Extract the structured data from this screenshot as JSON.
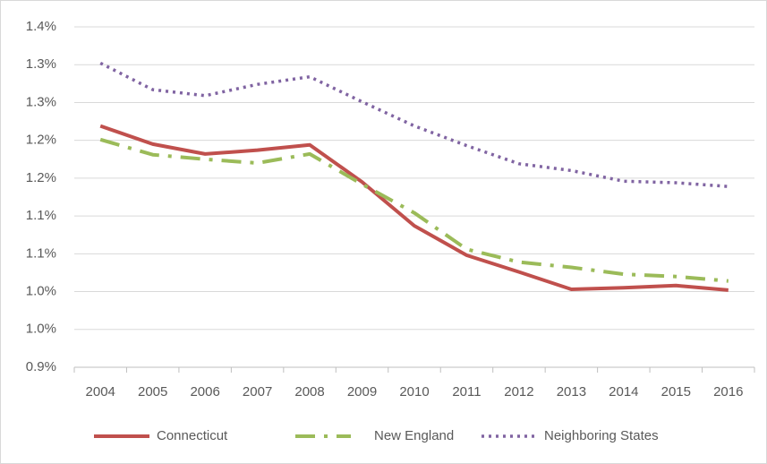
{
  "chart_data": {
    "type": "line",
    "categories": [
      "2004",
      "2005",
      "2006",
      "2007",
      "2008",
      "2009",
      "2010",
      "2011",
      "2012",
      "2013",
      "2014",
      "2015",
      "2016"
    ],
    "series": [
      {
        "name": "Connecticut",
        "color": "#c0504d",
        "style": "solid",
        "values": [
          1.219,
          1.195,
          1.182,
          1.187,
          1.194,
          1.145,
          1.087,
          1.048,
          1.026,
          1.003,
          1.005,
          1.008,
          1.002
        ]
      },
      {
        "name": "New England",
        "color": "#9bbb59",
        "style": "dash-dot",
        "values": [
          1.201,
          1.181,
          1.175,
          1.17,
          1.182,
          1.142,
          1.104,
          1.056,
          1.039,
          1.032,
          1.023,
          1.02,
          1.014
        ]
      },
      {
        "name": "Neighboring States",
        "color": "#8064a2",
        "style": "dotted",
        "values": [
          1.302,
          1.267,
          1.259,
          1.274,
          1.284,
          1.251,
          1.219,
          1.193,
          1.169,
          1.16,
          1.146,
          1.144,
          1.139
        ]
      }
    ],
    "ylim": [
      0.9,
      1.35
    ],
    "yticks": [
      {
        "value": 0.9,
        "label": "0.9%"
      },
      {
        "value": 0.95,
        "label": "1.0%"
      },
      {
        "value": 1.0,
        "label": "1.0%"
      },
      {
        "value": 1.05,
        "label": "1.1%"
      },
      {
        "value": 1.1,
        "label": "1.1%"
      },
      {
        "value": 1.15,
        "label": "1.2%"
      },
      {
        "value": 1.2,
        "label": "1.2%"
      },
      {
        "value": 1.25,
        "label": "1.3%"
      },
      {
        "value": 1.3,
        "label": "1.3%"
      },
      {
        "value": 1.35,
        "label": "1.4%"
      }
    ],
    "grid": true,
    "legend": "bottom"
  }
}
